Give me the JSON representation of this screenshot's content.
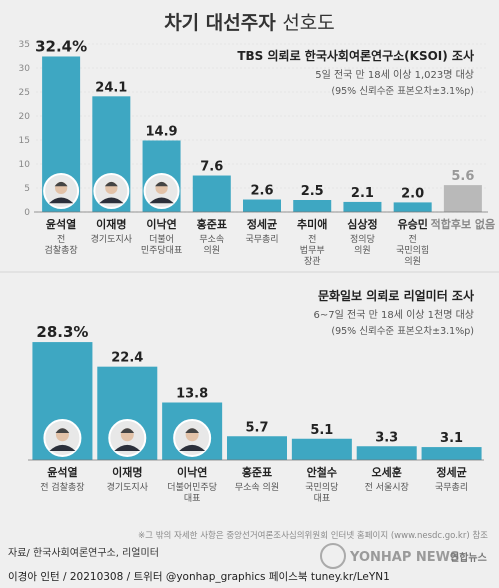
{
  "header": {
    "title_bold": "차기 대선주자",
    "title_light": "선호도"
  },
  "chart_data": [
    {
      "type": "bar",
      "title": "TBS 의뢰로 한국사회여론연구소(KSOI) 조사",
      "subtitle": "5일 전국 만 18세 이상 1,023명 대상",
      "note": "(95% 신뢰수준 표본오차±3.1%p)",
      "yticks": [
        "35",
        "30",
        "25",
        "20",
        "15",
        "10",
        "5",
        "0"
      ],
      "ylim": [
        0,
        35
      ],
      "categories": [
        "윤석열",
        "이재명",
        "이낙연",
        "홍준표",
        "정세균",
        "추미애",
        "심상정",
        "유승민",
        "적합후보 없음"
      ],
      "descriptions": [
        "전 검찰총장",
        "경기도지사",
        "더불어 민주당대표",
        "무소속 의원",
        "국무총리",
        "전 법무부 장관",
        "정의당 의원",
        "전 국민의힘 의원",
        ""
      ],
      "values": [
        32.4,
        24.1,
        14.9,
        7.6,
        2.6,
        2.5,
        2.1,
        2.0,
        5.6
      ],
      "value_labels": [
        "32.4%",
        "24.1",
        "14.9",
        "7.6",
        "2.6",
        "2.5",
        "2.1",
        "2.0",
        "5.6"
      ],
      "colors": {
        "bar": "#3ea7c2",
        "other": "#b9b9b9"
      }
    },
    {
      "type": "bar",
      "title": "문화일보 의뢰로 리얼미터 조사",
      "subtitle": "6~7일 전국 만 18세 이상 1천명 대상",
      "note": "(95% 신뢰수준 표본오차±3.1%p)",
      "yticks": [],
      "ylim": [
        0,
        30
      ],
      "categories": [
        "윤석열",
        "이재명",
        "이낙연",
        "홍준표",
        "안철수",
        "오세훈",
        "정세균"
      ],
      "descriptions": [
        "전 검찰총장",
        "경기도지사",
        "더불어민주당 대표",
        "무소속 의원",
        "국민의당 대표",
        "전 서울시장",
        "국무총리"
      ],
      "values": [
        28.3,
        22.4,
        13.8,
        5.7,
        5.1,
        3.3,
        3.1
      ],
      "value_labels": [
        "28.3%",
        "22.4",
        "13.8",
        "5.7",
        "5.1",
        "3.3",
        "3.1"
      ],
      "colors": {
        "bar": "#3ea7c2"
      }
    }
  ],
  "footer": {
    "note": "※그 밖의 자세한 사항은 중앙선거여론조사심의위원회 인터넷 홈페이지 (www.nesdc.go.kr) 참조",
    "source": "자료/ 한국사회여론연구소, 리얼미터",
    "credit": "이경아 인턴 / 20210308 / 트위터 @yonhap_graphics  페이스북 tuney.kr/LeYN1",
    "watermark": "YONHAP NEWS",
    "logo_text": "연합뉴스"
  }
}
